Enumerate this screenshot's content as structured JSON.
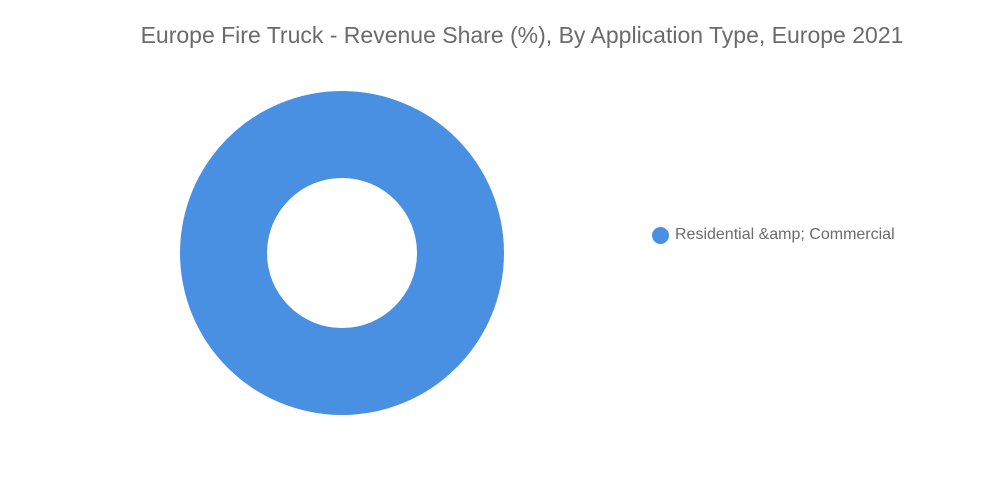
{
  "chart_data": {
    "type": "pie",
    "title": "Europe Fire Truck - Revenue Share (%), By Application Type, Europe 2021",
    "donut": true,
    "slices": [
      {
        "label": "Residential &amp; Commercial",
        "value": 100,
        "color": "#4a90e2"
      }
    ],
    "legend_position": "right"
  }
}
